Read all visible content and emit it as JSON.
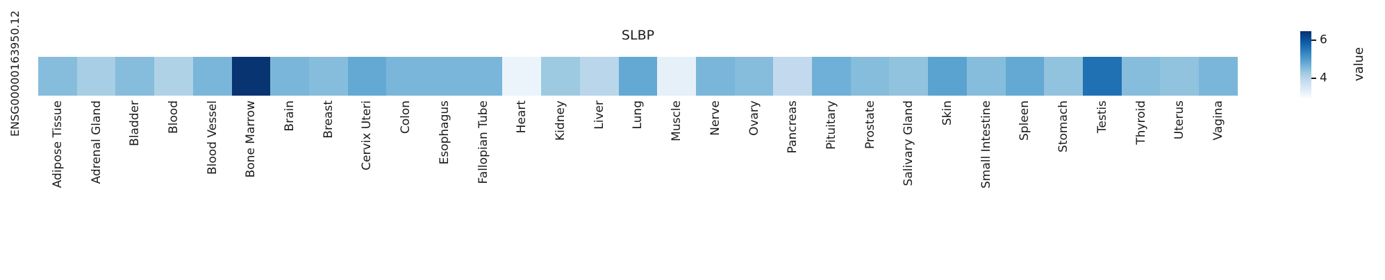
{
  "chart_data": {
    "type": "heatmap",
    "title": "SLBP",
    "row_label": "ENSG00000163950.12",
    "colorbar_label": "value",
    "colorbar_ticks": [
      6,
      4
    ],
    "vmin": 3.0,
    "vmax": 6.45,
    "colormap": "Blues",
    "colormap_stops": [
      {
        "pos": 0.0,
        "color": "#f7fbff"
      },
      {
        "pos": 0.125,
        "color": "#deebf7"
      },
      {
        "pos": 0.25,
        "color": "#c6dbef"
      },
      {
        "pos": 0.375,
        "color": "#9ecae1"
      },
      {
        "pos": 0.5,
        "color": "#6baed6"
      },
      {
        "pos": 0.625,
        "color": "#4292c6"
      },
      {
        "pos": 0.75,
        "color": "#2171b5"
      },
      {
        "pos": 0.875,
        "color": "#08519c"
      },
      {
        "pos": 1.0,
        "color": "#08306b"
      }
    ],
    "categories": [
      "Adipose Tissue",
      "Adrenal Gland",
      "Bladder",
      "Blood",
      "Blood Vessel",
      "Bone Marrow",
      "Brain",
      "Breast",
      "Cervix Uteri",
      "Colon",
      "Esophagus",
      "Fallopian Tube",
      "Heart",
      "Kidney",
      "Liver",
      "Lung",
      "Muscle",
      "Nerve",
      "Ovary",
      "Pancreas",
      "Pituitary",
      "Prostate",
      "Salivary Gland",
      "Skin",
      "Small Intestine",
      "Spleen",
      "Stomach",
      "Testis",
      "Thyroid",
      "Uterus",
      "Vagina"
    ],
    "values": [
      4.5,
      4.2,
      4.5,
      4.1,
      4.6,
      6.4,
      4.6,
      4.5,
      4.8,
      4.6,
      4.6,
      4.6,
      3.2,
      4.3,
      4.0,
      4.8,
      3.3,
      4.6,
      4.5,
      3.9,
      4.7,
      4.5,
      4.4,
      4.9,
      4.5,
      4.8,
      4.4,
      5.6,
      4.5,
      4.4,
      4.6
    ]
  }
}
